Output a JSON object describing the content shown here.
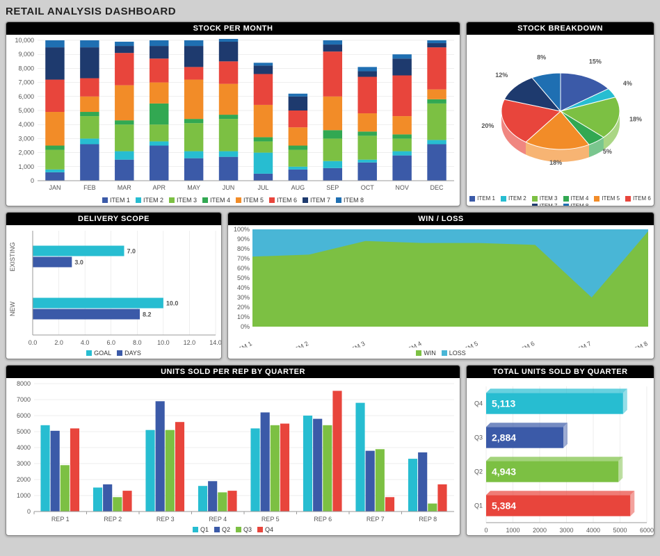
{
  "dashboard_title": "RETAIL ANALYSIS DASHBOARD",
  "item_colors": [
    "#3b5aa8",
    "#27bdd1",
    "#7cc043",
    "#32a852",
    "#f28c28",
    "#e8453c",
    "#1e3a6e",
    "#1f6fb2"
  ],
  "item_labels": [
    "ITEM 1",
    "ITEM 2",
    "ITEM 3",
    "ITEM 4",
    "ITEM 5",
    "ITEM 6",
    "ITEM 7",
    "ITEM 8"
  ],
  "stock_per_month": {
    "title": "STOCK PER MONTH",
    "type": "stacked-bar",
    "categories": [
      "JAN",
      "FEB",
      "MAR",
      "APR",
      "MAY",
      "JUN",
      "JUL",
      "AUG",
      "SEP",
      "OCT",
      "NOV",
      "DEC"
    ],
    "ymax": 10000,
    "ytick_step": 1000,
    "series": [
      [
        600,
        2600,
        1500,
        2500,
        1600,
        1700,
        500,
        800,
        900,
        1300,
        1800,
        2600
      ],
      [
        200,
        400,
        600,
        300,
        500,
        400,
        1500,
        200,
        500,
        200,
        300,
        300
      ],
      [
        1400,
        1600,
        1900,
        1200,
        2000,
        2300,
        800,
        1200,
        1600,
        1700,
        900,
        2600
      ],
      [
        300,
        300,
        300,
        1500,
        300,
        300,
        300,
        300,
        600,
        300,
        300,
        300
      ],
      [
        2400,
        1100,
        2500,
        1500,
        2800,
        2200,
        2300,
        1300,
        2400,
        1300,
        1300,
        700
      ],
      [
        2300,
        1300,
        2300,
        1700,
        900,
        1600,
        2200,
        1200,
        3200,
        2600,
        2900,
        3000
      ],
      [
        2300,
        2200,
        500,
        900,
        1500,
        1400,
        600,
        1000,
        500,
        400,
        1200,
        300
      ],
      [
        500,
        500,
        300,
        400,
        400,
        200,
        200,
        200,
        300,
        300,
        300,
        200
      ]
    ],
    "legend_labels": [
      "ITEM 1",
      "ITEM 2",
      "ITEM 3",
      "ITEM 4",
      "ITEM 5",
      "ITEM 6",
      "ITEM 7",
      "ITEM 8"
    ]
  },
  "stock_breakdown": {
    "title": "STOCK BREAKDOWN",
    "type": "pie-3d",
    "slices": [
      {
        "label": "15%",
        "pct": 15,
        "color": "#3b5aa8"
      },
      {
        "label": "4%",
        "pct": 4,
        "color": "#27bdd1"
      },
      {
        "label": "18%",
        "pct": 18,
        "color": "#7cc043"
      },
      {
        "label": "5%",
        "pct": 5,
        "color": "#32a852"
      },
      {
        "label": "18%",
        "pct": 18,
        "color": "#f28c28"
      },
      {
        "label": "20%",
        "pct": 20,
        "color": "#e8453c"
      },
      {
        "label": "12%",
        "pct": 12,
        "color": "#1e3a6e"
      },
      {
        "label": "8%",
        "pct": 8,
        "color": "#1f6fb2"
      }
    ],
    "legend_labels": [
      "ITEM 1",
      "ITEM 2",
      "ITEM 3",
      "ITEM 4",
      "ITEM 5",
      "ITEM 6",
      "ITEM 7",
      "ITEM 8"
    ]
  },
  "delivery_scope": {
    "title": "DELIVERY SCOPE",
    "type": "grouped-hbar",
    "categories": [
      "EXISTING",
      "NEW"
    ],
    "series": [
      {
        "name": "GOAL",
        "color": "#27bdd1",
        "values": [
          7.0,
          10.0
        ]
      },
      {
        "name": "DAYS",
        "color": "#3b5aa8",
        "values": [
          3.0,
          8.2
        ]
      }
    ],
    "xmax": 14.0,
    "xtick_step": 2.0,
    "legend_labels": [
      "GOAL",
      "DAYS"
    ]
  },
  "win_loss": {
    "title": "WIN / LOSS",
    "type": "area-stacked",
    "categories": [
      "ITEM 1",
      "ITEM 2",
      "ITEM 3",
      "ITEM 4",
      "ITEM 5",
      "ITEM 6",
      "ITEM 7",
      "ITEM 8"
    ],
    "win_pct": [
      72,
      74,
      88,
      86,
      86,
      84,
      30,
      98
    ],
    "win_color": "#7cc043",
    "loss_color": "#49b6d6",
    "ymax": 100,
    "ytick_step": 10,
    "legend_labels": [
      "WIN",
      "LOSS"
    ]
  },
  "units_per_rep": {
    "title": "UNITS SOLD PER REP BY QUARTER",
    "type": "grouped-bar",
    "categories": [
      "REP 1",
      "REP 2",
      "REP 3",
      "REP 4",
      "REP 5",
      "REP 6",
      "REP 7",
      "REP 8"
    ],
    "series": [
      {
        "name": "Q1",
        "color": "#27bdd1",
        "values": [
          5400,
          1500,
          5100,
          1600,
          5200,
          6000,
          6800,
          3300
        ]
      },
      {
        "name": "Q2",
        "color": "#3b5aa8",
        "values": [
          5050,
          1700,
          6900,
          1900,
          6200,
          5800,
          3800,
          3700
        ]
      },
      {
        "name": "Q3",
        "color": "#7cc043",
        "values": [
          2900,
          900,
          5100,
          1200,
          5400,
          5400,
          3900,
          500
        ]
      },
      {
        "name": "Q4",
        "color": "#e8453c",
        "values": [
          5200,
          1300,
          5600,
          1300,
          5500,
          7550,
          900,
          1700
        ]
      }
    ],
    "ymax": 8000,
    "ytick_step": 1000,
    "legend_labels": [
      "Q1",
      "Q2",
      "Q3",
      "Q4"
    ]
  },
  "total_units_quarter": {
    "title": "TOTAL UNITS SOLD BY QUARTER",
    "type": "hbar-3d",
    "bars": [
      {
        "label": "Q4",
        "value": 5113,
        "display": "5,113",
        "color": "#27bdd1"
      },
      {
        "label": "Q3",
        "value": 2884,
        "display": "2,884",
        "color": "#3b5aa8"
      },
      {
        "label": "Q2",
        "value": 4943,
        "display": "4,943",
        "color": "#7cc043"
      },
      {
        "label": "Q1",
        "value": 5384,
        "display": "5,384",
        "color": "#e8453c"
      }
    ],
    "xmax": 6000,
    "xtick_step": 1000
  }
}
